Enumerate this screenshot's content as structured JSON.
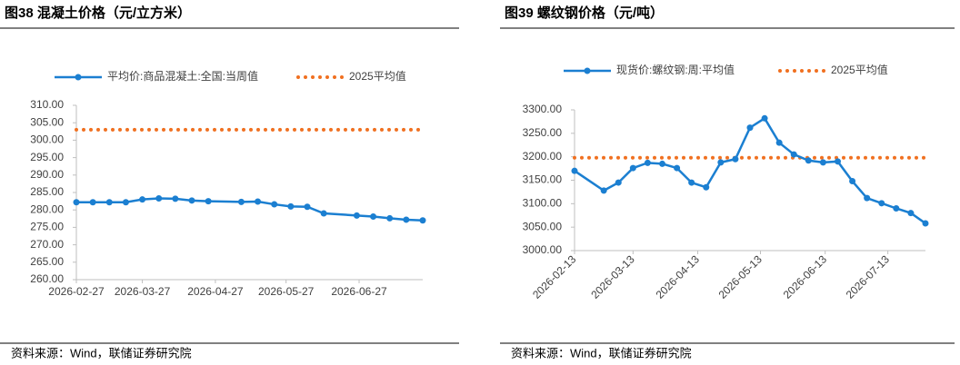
{
  "chart_data": [
    {
      "type": "line",
      "title": "图38 混凝土价格（元/立方米）",
      "source": "资料来源：Wind，联储证券研究院",
      "x": [
        "2026-02-27",
        "2026-03-06",
        "2026-03-13",
        "2026-03-20",
        "2026-03-27",
        "2026-04-03",
        "2026-04-10",
        "2026-04-17",
        "2026-04-24",
        "2026-05-08",
        "2026-05-15",
        "2026-05-22",
        "2026-05-29",
        "2026-06-05",
        "2026-06-12",
        "2026-06-26",
        "2026-07-03",
        "2026-07-10",
        "2026-07-17",
        "2026-07-24"
      ],
      "series": [
        {
          "name": "平均价:商品混凝土:全国:当周值",
          "color": "#1b7fd1",
          "values": [
            282.2,
            282.2,
            282.2,
            282.2,
            283.0,
            283.3,
            283.2,
            282.7,
            282.5,
            282.3,
            282.4,
            281.6,
            281.0,
            280.9,
            279.0,
            278.4,
            278.1,
            277.6,
            277.2,
            277.0
          ]
        }
      ],
      "reference_lines": [
        {
          "name": "2025平均值",
          "color": "#f07020",
          "value": 303.0
        }
      ],
      "xlim": [
        "2026-02-27",
        "2026-07-24"
      ],
      "xticks": [
        "2026-02-27",
        "2026-03-27",
        "2026-04-27",
        "2026-05-27",
        "2026-06-27"
      ],
      "ylim": [
        260,
        310
      ],
      "yticks": [
        {
          "value": 260,
          "label": "260.00"
        },
        {
          "value": 265,
          "label": "265.00"
        },
        {
          "value": 270,
          "label": "270.00"
        },
        {
          "value": 275,
          "label": "275.00"
        },
        {
          "value": 280,
          "label": "280.00"
        },
        {
          "value": 285,
          "label": "285.00"
        },
        {
          "value": 290,
          "label": "290.00"
        },
        {
          "value": 295,
          "label": "295.00"
        },
        {
          "value": 300,
          "label": "300.00"
        },
        {
          "value": 305,
          "label": "305.00"
        },
        {
          "value": 310,
          "label": "310.00"
        }
      ],
      "grid": false
    },
    {
      "type": "line",
      "title": "图39 螺纹钢价格（元/吨）",
      "source": "资料来源：Wind，联储证券研究院",
      "x": [
        "2026-02-13",
        "2026-02-27",
        "2026-03-06",
        "2026-03-13",
        "2026-03-20",
        "2026-03-27",
        "2026-04-03",
        "2026-04-10",
        "2026-04-17",
        "2026-04-24",
        "2026-05-01",
        "2026-05-08",
        "2026-05-15",
        "2026-05-22",
        "2026-05-29",
        "2026-06-05",
        "2026-06-12",
        "2026-06-19",
        "2026-06-26",
        "2026-07-03",
        "2026-07-10",
        "2026-07-17",
        "2026-07-24",
        "2026-07-31"
      ],
      "series": [
        {
          "name": "现货价:螺纹钢:周:平均值",
          "color": "#1b7fd1",
          "values": [
            3170,
            3128,
            3145,
            3176,
            3187,
            3185,
            3176,
            3145,
            3135,
            3188,
            3195,
            3262,
            3282,
            3230,
            3205,
            3192,
            3188,
            3190,
            3148,
            3112,
            3101,
            3090,
            3080,
            3058
          ]
        }
      ],
      "reference_lines": [
        {
          "name": "2025平均值",
          "color": "#f07020",
          "value": 3198
        }
      ],
      "xlim": [
        "2026-02-13",
        "2026-07-31"
      ],
      "xticks": [
        "2026-02-13",
        "2026-03-13",
        "2026-04-13",
        "2026-05-13",
        "2026-06-13",
        "2026-07-13"
      ],
      "ylim": [
        3000,
        3300
      ],
      "yticks": [
        {
          "value": 3000,
          "label": "3000.00"
        },
        {
          "value": 3050,
          "label": "3050.00"
        },
        {
          "value": 3100,
          "label": "3100.00"
        },
        {
          "value": 3150,
          "label": "3150.00"
        },
        {
          "value": 3200,
          "label": "3200.00"
        },
        {
          "value": 3250,
          "label": "3250.00"
        },
        {
          "value": 3300,
          "label": "3300.00"
        }
      ],
      "grid": false
    }
  ]
}
